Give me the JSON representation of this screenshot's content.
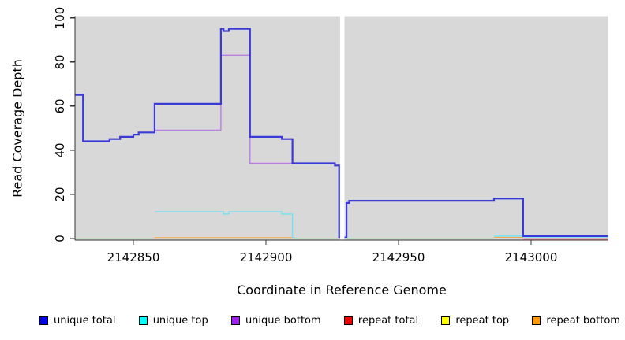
{
  "figure": {
    "xlabel": "Coordinate in Reference Genome",
    "ylabel": "Read Coverage Depth"
  },
  "chart_data": {
    "type": "line",
    "subtype": "step-coverage-plot",
    "title": "",
    "xlabel": "Coordinate in Reference Genome",
    "ylabel": "Read Coverage Depth",
    "xlim": [
      2142828,
      2143029
    ],
    "ylim": [
      0,
      100
    ],
    "x_ticks": [
      2142850,
      2142900,
      2142950,
      2143000
    ],
    "x_tick_labels": [
      "2142850",
      "2142900",
      "2142950",
      "2143000"
    ],
    "y_ticks": [
      0,
      20,
      40,
      60,
      80,
      100
    ],
    "y_tick_labels": [
      "0",
      "20",
      "40",
      "60",
      "80",
      "100"
    ],
    "grid": false,
    "panel_bg": "#d8d8d8",
    "axis_color": "#333333",
    "gap_region": {
      "start": 2142928,
      "end": 2142929.6,
      "color": "#ffffff"
    },
    "legend_position": "bottom",
    "legend": [
      {
        "label": "unique total",
        "color": "#0000ee"
      },
      {
        "label": "unique top",
        "color": "#00ffff"
      },
      {
        "label": "unique bottom",
        "color": "#a020f0"
      },
      {
        "label": "repeat total",
        "color": "#ee0000"
      },
      {
        "label": "repeat top",
        "color": "#ffff00"
      },
      {
        "label": "repeat bottom",
        "color": "#ff9900"
      }
    ],
    "series": [
      {
        "name": "baseline zero",
        "line_color": "#8fd6a0",
        "width": 1.2,
        "segments": [
          [
            [
              2142828,
              0
            ],
            [
              2142858,
              0
            ]
          ],
          [
            [
              2142910,
              0
            ],
            [
              2142986,
              0
            ]
          ]
        ]
      },
      {
        "name": "repeat total",
        "line_color": "#ee8899",
        "width": 1.2,
        "segments": [
          [
            [
              2142997,
              -0.5
            ],
            [
              2143029,
              -0.5
            ]
          ]
        ]
      },
      {
        "name": "repeat bottom",
        "line_color": "#ff9a1e",
        "width": 1.6,
        "segments": [
          [
            [
              2142858,
              0.15
            ],
            [
              2142910,
              0.15
            ]
          ],
          [
            [
              2142986,
              0.25
            ],
            [
              2142997,
              0.25
            ]
          ]
        ]
      },
      {
        "name": "unique top",
        "line_color": "#6fe3ef",
        "width": 1.4,
        "segments": [
          [
            [
              2142858,
              12
            ],
            [
              2142884,
              11
            ],
            [
              2142886,
              12
            ],
            [
              2142906,
              11
            ],
            [
              2142910,
              0.2
            ],
            [
              2142911,
              0.2
            ]
          ],
          [
            [
              2142986,
              1
            ],
            [
              2142997,
              0.6
            ],
            [
              2143029,
              0.6
            ]
          ]
        ]
      },
      {
        "name": "unique bottom",
        "line_color": "#b87fe0",
        "width": 1.4,
        "segments": [
          [
            [
              2142858,
              49
            ],
            [
              2142883,
              83
            ],
            [
              2142894,
              34
            ],
            [
              2142926,
              33
            ],
            [
              2142927.6,
              0
            ],
            [
              2142930,
              0
            ]
          ]
        ]
      },
      {
        "name": "unique total",
        "line_color": "#3a3ad6",
        "width": 2.2,
        "segments": [
          [
            [
              2142828,
              65
            ],
            [
              2142831,
              44
            ],
            [
              2142841,
              45
            ],
            [
              2142845,
              46
            ],
            [
              2142850,
              47
            ],
            [
              2142852,
              48
            ],
            [
              2142858,
              61
            ],
            [
              2142883,
              95
            ],
            [
              2142884,
              94
            ],
            [
              2142886,
              95
            ],
            [
              2142894,
              46
            ],
            [
              2142906,
              45
            ],
            [
              2142910,
              34
            ],
            [
              2142926,
              33
            ],
            [
              2142927.6,
              0.4
            ],
            [
              2142930,
              0.4
            ],
            [
              2142930.4,
              16
            ],
            [
              2142931.4,
              17
            ],
            [
              2142986,
              18
            ],
            [
              2142997,
              1
            ],
            [
              2143029,
              1
            ]
          ]
        ]
      }
    ]
  }
}
